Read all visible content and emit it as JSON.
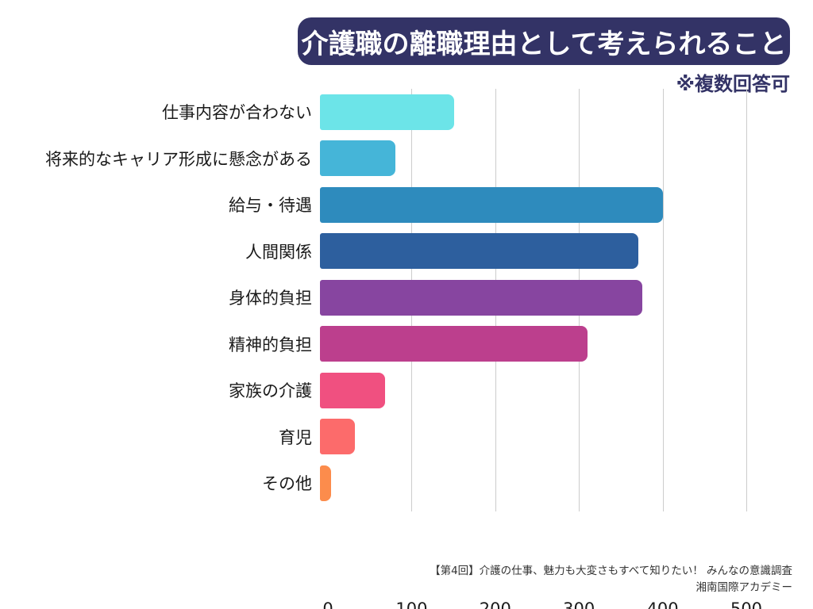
{
  "title": {
    "text": "介護職の離職理由として考えられること",
    "bg_color": "#333366",
    "text_color": "#ffffff"
  },
  "note": {
    "text": "※複数回答可",
    "color": "#333366"
  },
  "chart_data": {
    "type": "bar",
    "orientation": "horizontal",
    "title": "介護職の離職理由として考えられること",
    "subtitle": "※複数回答可",
    "categories": [
      "仕事内容が合わない",
      "将来的なキャリア形成に懸念がある",
      "給与・待遇",
      "人間関係",
      "身体的負担",
      "精神的負担",
      "家族の介護",
      "育児",
      "その他"
    ],
    "values": [
      160,
      90,
      410,
      380,
      385,
      320,
      78,
      42,
      13
    ],
    "bar_colors": [
      "#6ce4e8",
      "#45b5d8",
      "#2e8bbd",
      "#2d5f9e",
      "#8745a0",
      "#bc3f8d",
      "#f05080",
      "#fc6b6b",
      "#fc8c4c"
    ],
    "xlabel": "",
    "ylabel": "",
    "xlim": [
      0,
      500
    ],
    "x_ticks": [
      0,
      100,
      200,
      300,
      400,
      500
    ],
    "grid": true,
    "gridline_color": "#cccccc",
    "legend": "none"
  },
  "footer": {
    "line1": "【第4回】介護の仕事、魅力も大変さもすべて知りたい！ みんなの意識調査",
    "line2": "湘南国際アカデミー"
  }
}
